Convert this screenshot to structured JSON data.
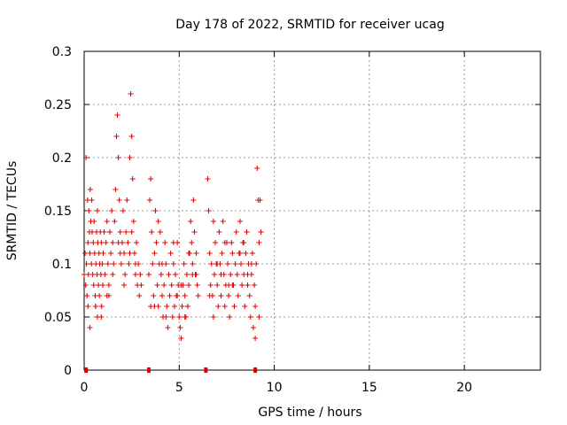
{
  "chart_data": {
    "type": "scatter",
    "title": "Day 178 of 2022, SRMTID for receiver ucag",
    "xlabel": "GPS time / hours",
    "ylabel": "SRMTID / TECUs",
    "xlim": [
      0,
      24
    ],
    "ylim": [
      0,
      0.3
    ],
    "xticks": [
      0,
      5,
      10,
      15,
      20
    ],
    "xtick_labels": [
      "0",
      "5",
      "10",
      "15",
      "20"
    ],
    "yticks": [
      0,
      0.05,
      0.1,
      0.15,
      0.2,
      0.25,
      0.3
    ],
    "ytick_labels": [
      "0",
      "0.05",
      "0.1",
      "0.15",
      "0.2",
      "0.25",
      "0.3"
    ],
    "grid": true,
    "marker": "+",
    "color": "#dd0000",
    "series": [
      {
        "name": "SRMTID",
        "x": [
          0.0,
          0.05,
          0.08,
          0.1,
          0.12,
          0.15,
          0.18,
          0.2,
          0.22,
          0.25,
          0.28,
          0.3,
          0.32,
          0.35,
          0.38,
          0.4,
          0.42,
          0.45,
          0.48,
          0.5,
          0.52,
          0.55,
          0.58,
          0.6,
          0.62,
          0.65,
          0.68,
          0.7,
          0.72,
          0.75,
          0.78,
          0.8,
          0.82,
          0.85,
          0.88,
          0.9,
          0.92,
          0.95,
          0.98,
          1.0,
          1.05,
          1.1,
          1.15,
          1.2,
          1.25,
          1.3,
          1.35,
          1.4,
          1.45,
          1.5,
          1.55,
          1.6,
          1.65,
          1.7,
          1.75,
          1.8,
          1.85,
          1.9,
          1.95,
          2.0,
          2.05,
          2.1,
          2.15,
          2.2,
          2.25,
          2.3,
          2.35,
          2.4,
          2.45,
          2.5,
          2.55,
          2.6,
          2.65,
          2.7,
          2.75,
          2.8,
          2.85,
          2.9,
          2.95,
          3.0,
          0.3,
          0.6,
          0.9,
          1.2,
          1.5,
          1.8,
          2.1,
          2.4,
          2.7,
          0.2,
          0.7,
          1.3,
          1.9,
          2.5,
          3.4,
          3.45,
          3.5,
          3.55,
          3.6,
          3.65,
          3.7,
          3.75,
          3.8,
          3.85,
          3.9,
          3.95,
          4.0,
          4.05,
          4.1,
          4.15,
          4.2,
          4.25,
          4.3,
          4.35,
          4.4,
          4.45,
          4.5,
          4.55,
          4.6,
          4.65,
          4.7,
          4.75,
          4.8,
          4.85,
          4.9,
          4.95,
          5.0,
          5.05,
          5.1,
          5.15,
          5.2,
          5.25,
          5.3,
          5.35,
          5.4,
          5.45,
          5.5,
          5.55,
          5.6,
          5.65,
          5.7,
          5.75,
          5.8,
          5.85,
          5.9,
          5.95,
          6.0,
          3.5,
          3.9,
          4.3,
          4.7,
          5.1,
          5.5,
          5.9,
          3.7,
          4.1,
          4.9,
          5.3,
          5.7,
          6.5,
          6.55,
          6.6,
          6.65,
          6.7,
          6.75,
          6.8,
          6.85,
          6.9,
          6.95,
          7.0,
          7.05,
          7.1,
          7.15,
          7.2,
          7.25,
          7.3,
          7.35,
          7.4,
          7.45,
          7.5,
          7.55,
          7.6,
          7.65,
          7.7,
          7.75,
          7.8,
          7.85,
          7.9,
          7.95,
          8.0,
          8.05,
          8.1,
          8.15,
          8.2,
          8.25,
          8.3,
          8.35,
          8.4,
          8.45,
          8.5,
          8.55,
          8.6,
          8.65,
          8.7,
          8.75,
          8.8,
          8.85,
          8.9,
          8.95,
          9.0,
          9.05,
          9.1,
          9.15,
          9.2,
          9.25,
          9.3,
          6.6,
          7.0,
          7.4,
          7.8,
          8.2,
          8.6,
          9.0,
          6.8,
          7.2,
          7.6,
          8.4,
          8.8,
          9.2
        ],
        "y": [
          0.09,
          0.11,
          0.08,
          0.2,
          0.1,
          0.07,
          0.16,
          0.12,
          0.09,
          0.15,
          0.13,
          0.11,
          0.17,
          0.14,
          0.1,
          0.16,
          0.13,
          0.09,
          0.12,
          0.08,
          0.14,
          0.11,
          0.07,
          0.06,
          0.1,
          0.13,
          0.09,
          0.05,
          0.12,
          0.08,
          0.11,
          0.07,
          0.1,
          0.13,
          0.09,
          0.12,
          0.06,
          0.1,
          0.08,
          0.11,
          0.13,
          0.09,
          0.12,
          0.14,
          0.1,
          0.08,
          0.13,
          0.11,
          0.15,
          0.12,
          0.1,
          0.14,
          0.17,
          0.22,
          0.24,
          0.2,
          0.16,
          0.13,
          0.1,
          0.12,
          0.15,
          0.11,
          0.09,
          0.13,
          0.16,
          0.12,
          0.1,
          0.2,
          0.26,
          0.22,
          0.18,
          0.14,
          0.11,
          0.09,
          0.12,
          0.08,
          0.1,
          0.07,
          0.09,
          0.08,
          0.04,
          0.06,
          0.05,
          0.07,
          0.09,
          0.12,
          0.08,
          0.11,
          0.1,
          0.06,
          0.15,
          0.07,
          0.11,
          0.13,
          0.09,
          0.16,
          0.18,
          0.13,
          0.1,
          0.07,
          0.11,
          0.15,
          0.12,
          0.08,
          0.06,
          0.1,
          0.13,
          0.09,
          0.07,
          0.05,
          0.08,
          0.12,
          0.1,
          0.06,
          0.04,
          0.09,
          0.07,
          0.11,
          0.08,
          0.05,
          0.1,
          0.06,
          0.09,
          0.07,
          0.12,
          0.08,
          0.05,
          0.04,
          0.03,
          0.06,
          0.08,
          0.1,
          0.07,
          0.05,
          0.09,
          0.06,
          0.08,
          0.11,
          0.14,
          0.12,
          0.1,
          0.16,
          0.13,
          0.09,
          0.11,
          0.08,
          0.07,
          0.06,
          0.14,
          0.05,
          0.12,
          0.08,
          0.11,
          0.09,
          0.06,
          0.1,
          0.07,
          0.05,
          0.09,
          0.18,
          0.15,
          0.11,
          0.08,
          0.1,
          0.07,
          0.05,
          0.09,
          0.12,
          0.1,
          0.08,
          0.06,
          0.13,
          0.1,
          0.07,
          0.11,
          0.14,
          0.09,
          0.06,
          0.08,
          0.12,
          0.1,
          0.07,
          0.05,
          0.09,
          0.12,
          0.11,
          0.08,
          0.06,
          0.1,
          0.13,
          0.09,
          0.07,
          0.11,
          0.14,
          0.1,
          0.08,
          0.12,
          0.09,
          0.06,
          0.11,
          0.13,
          0.08,
          0.1,
          0.07,
          0.05,
          0.09,
          0.11,
          0.04,
          0.08,
          0.06,
          0.1,
          0.19,
          0.16,
          0.12,
          0.16,
          0.13,
          0.07,
          0.1,
          0.12,
          0.08,
          0.11,
          0.09,
          0.03,
          0.14,
          0.09,
          0.08,
          0.12,
          0.1,
          0.05
        ]
      }
    ],
    "zero_markers_x": [
      0.1,
      3.4,
      6.4,
      9.0
    ]
  }
}
